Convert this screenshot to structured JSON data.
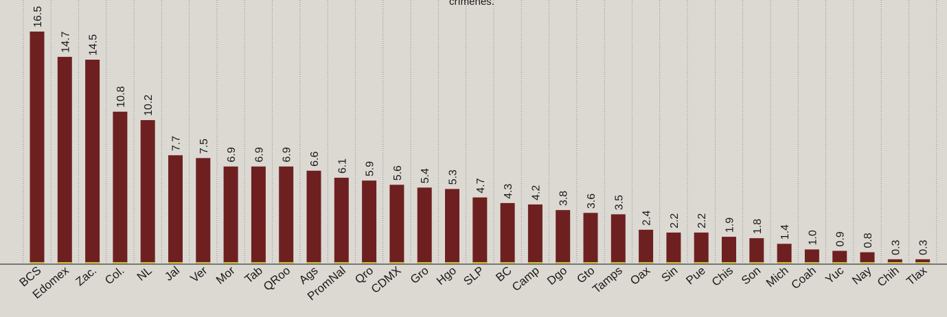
{
  "caption_top": "crímenes.",
  "colors": {
    "bar": "#6e2020",
    "bar_base": "#c9c23a",
    "text": "#1a1a1a",
    "grid": "#7a7a7a",
    "background": "#dcd9d3"
  },
  "chart_data": {
    "type": "bar",
    "categories": [
      "BCS",
      "Edomex",
      "Zac.",
      "Col.",
      "NL",
      "Jal",
      "Ver",
      "Mor",
      "Tab",
      "QRoo",
      "Ags",
      "PromNal",
      "Qro",
      "CDMX",
      "Gro",
      "Hgo",
      "SLP",
      "BC",
      "Camp",
      "Dgo",
      "Gto",
      "Tamps",
      "Oax",
      "Sin",
      "Pue",
      "Chis",
      "Son",
      "Mich",
      "Coah",
      "Yuc",
      "Nay",
      "Chih",
      "Tlax"
    ],
    "values": [
      16.5,
      14.7,
      14.5,
      10.8,
      10.2,
      7.7,
      7.5,
      6.9,
      6.9,
      6.9,
      6.6,
      6.1,
      5.9,
      5.6,
      5.4,
      5.3,
      4.7,
      4.3,
      4.2,
      3.8,
      3.6,
      3.5,
      2.4,
      2.2,
      2.2,
      1.9,
      1.8,
      1.4,
      1.0,
      0.9,
      0.8,
      0.3,
      0.3
    ],
    "value_labels": [
      "16.5",
      "14.7",
      "14.5",
      "10.8",
      "10.2",
      "7.7",
      "7.5",
      "6.9",
      "6.9",
      "6.9",
      "6.6",
      "6.1",
      "5.9",
      "5.6",
      "5.4",
      "5.3",
      "4.7",
      "4.3",
      "4.2",
      "3.8",
      "3.6",
      "3.5",
      "2.4",
      "2.2",
      "2.2",
      "1.9",
      "1.8",
      "1.4",
      "1.0",
      "0.9",
      "0.8",
      "0.3",
      "0.3"
    ],
    "title": "",
    "xlabel": "",
    "ylabel": "",
    "ylim": [
      0,
      16.5
    ],
    "grid": "vertical-dotted",
    "legend": "none"
  }
}
